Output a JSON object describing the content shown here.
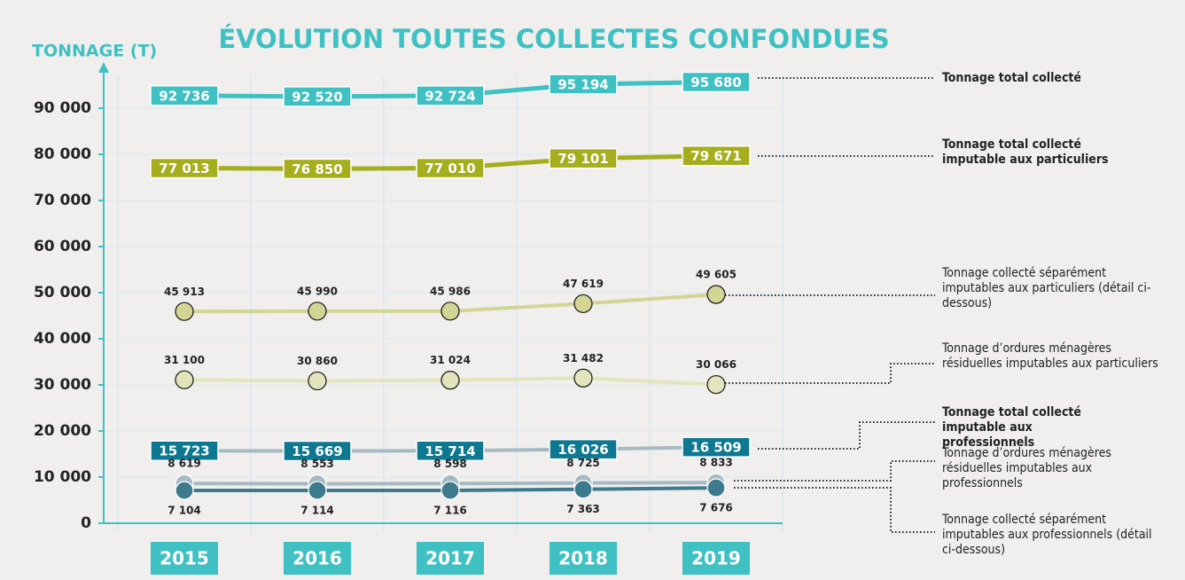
{
  "chart_data": {
    "type": "line",
    "title": "ÉVOLUTION TOUTES COLLECTES CONFONDUES",
    "y_label": "TONNAGE (T)",
    "categories": [
      "2015",
      "2016",
      "2017",
      "2018",
      "2019"
    ],
    "ylim": [
      0,
      100000
    ],
    "yticks": [
      0,
      {
        "value": 10000,
        "label": "10 000"
      },
      {
        "value": 20000,
        "label": "20 000"
      },
      {
        "value": 30000,
        "label": "30 000"
      },
      {
        "value": 40000,
        "label": "40 000"
      },
      {
        "value": 50000,
        "label": "50 000"
      },
      {
        "value": 60000,
        "label": "60 000"
      },
      {
        "value": 70000,
        "label": "70 000"
      },
      {
        "value": 80000,
        "label": "80 000"
      },
      {
        "value": 90000,
        "label": "90 000"
      }
    ],
    "grid": true,
    "series": [
      {
        "name": "Tonnage total collecté",
        "color": "#3fc0c3",
        "values": [
          92736,
          92520,
          92724,
          95194,
          95680
        ],
        "value_labels": [
          "92 736",
          "92 520",
          "92 724",
          "95 194",
          "95 680"
        ]
      },
      {
        "name": "Tonnage total collecté imputable aux particuliers",
        "color": "#a5ae1d",
        "values": [
          77013,
          76850,
          77010,
          79101,
          79671
        ],
        "value_labels": [
          "77 013",
          "76 850",
          "77 010",
          "79 101",
          "79 671"
        ]
      },
      {
        "name": "Tonnage collecté séparément imputables aux particuliers (détail ci-dessous)",
        "color": "#d2d594",
        "values": [
          45913,
          45990,
          45986,
          47619,
          49605
        ],
        "value_labels": [
          "45 913",
          "45 990",
          "45 986",
          "47 619",
          "49 605"
        ]
      },
      {
        "name": "Tonnage d’ordures ménagères résiduelles imputables aux particuliers",
        "color": "#e2e5bb",
        "values": [
          31100,
          30860,
          31024,
          31482,
          30066
        ],
        "value_labels": [
          "31 100",
          "30 860",
          "31 024",
          "31 482",
          "30 066"
        ]
      },
      {
        "name": "Tonnage total collecté imputable aux professionnels",
        "color": "#0e7890",
        "line_color": "#a7bac2",
        "values": [
          15723,
          15669,
          15714,
          16026,
          16509
        ],
        "value_labels": [
          "15 723",
          "15 669",
          "15 714",
          "16 026",
          "16 509"
        ]
      },
      {
        "name": "Tonnage d’ordures ménagères résiduelles imputables aux professionnels",
        "color": "#a7bac2",
        "values": [
          8619,
          8553,
          8598,
          8725,
          8833
        ],
        "value_labels": [
          "8 619",
          "8 553",
          "8 598",
          "8 725",
          "8 833"
        ]
      },
      {
        "name": "Tonnage collecté séparément imputables aux professionnels (détail ci-dessous)",
        "color": "#3e7a8e",
        "values": [
          7104,
          7114,
          7116,
          7363,
          7676
        ],
        "value_labels": [
          "7 104",
          "7 114",
          "7 116",
          "7 363",
          "7 676"
        ]
      }
    ]
  }
}
